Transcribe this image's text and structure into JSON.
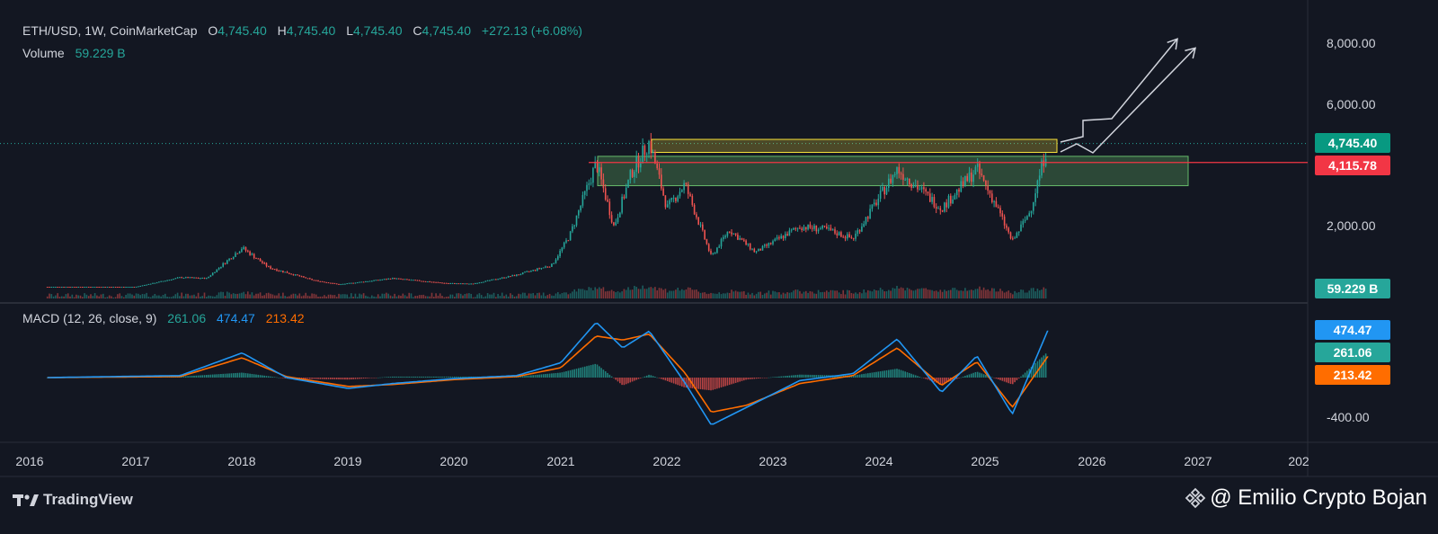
{
  "legend": {
    "symbol": "ETH/USD, 1W, CoinMarketCap",
    "o_label": "O",
    "o_value": "4,745.40",
    "h_label": "H",
    "h_value": "4,745.40",
    "l_label": "L",
    "l_value": "4,745.40",
    "c_label": "C",
    "c_value": "4,745.40",
    "change": "+272.13 (+6.08%)",
    "volume_label": "Volume",
    "volume_value": "59.229 B",
    "macd_label": "MACD (12, 26, close, 9)",
    "macd_hist": "261.06",
    "macd_line": "474.47",
    "macd_signal": "213.42"
  },
  "badges": {
    "last_price": "4,745.40",
    "resistance": "4,115.78",
    "volume": "59.229 B",
    "macd_line": "474.47",
    "macd_hist": "261.06",
    "macd_signal": "213.42"
  },
  "colors": {
    "background": "#131722",
    "up": "#26a69a",
    "down": "#ef5350",
    "macd_line": "#2196f3",
    "signal_line": "#ff6d00",
    "resistance_line": "#f23645",
    "zone_yellow": "#f7e13a",
    "zone_green": "#66bb6a"
  },
  "footer": {
    "brand": "TradingView",
    "author": "@ Emilio Crypto Bojan"
  },
  "chart_data": {
    "type": "candlestick",
    "x_ticks": [
      "2016",
      "2017",
      "2018",
      "2019",
      "2020",
      "2021",
      "2022",
      "2023",
      "2024",
      "2025",
      "2026",
      "2027",
      "202"
    ],
    "y_ticks": [
      "8,000.00",
      "6,000.00",
      "2,000.00"
    ],
    "macd_ticks": [
      "-400.00"
    ],
    "series": [
      {
        "name": "ETH/USD",
        "x": [
          "2016-03",
          "2017-01",
          "2017-06",
          "2017-09",
          "2018-01",
          "2018-04",
          "2018-09",
          "2018-12",
          "2019-06",
          "2019-12",
          "2020-03",
          "2020-08",
          "2020-12",
          "2021-02",
          "2021-05",
          "2021-07",
          "2021-09",
          "2021-11",
          "2022-01",
          "2022-03",
          "2022-06",
          "2022-08",
          "2022-11",
          "2023-04",
          "2023-07",
          "2023-10",
          "2024-03",
          "2024-08",
          "2024-12",
          "2025-02",
          "2025-04",
          "2025-06",
          "2025-08"
        ],
        "values": [
          10,
          10,
          320,
          290,
          1300,
          650,
          230,
          90,
          290,
          130,
          110,
          400,
          730,
          1700,
          4100,
          2000,
          3800,
          4800,
          2600,
          3400,
          1000,
          1900,
          1150,
          2000,
          1900,
          1600,
          3900,
          2600,
          3900,
          2800,
          1500,
          2500,
          4745.4
        ]
      }
    ],
    "volume_last": "59.229 B",
    "macd": {
      "x": [
        "2016-03",
        "2017-06",
        "2018-01",
        "2018-06",
        "2019-01",
        "2019-06",
        "2020-01",
        "2020-08",
        "2021-01",
        "2021-05",
        "2021-08",
        "2021-11",
        "2022-03",
        "2022-06",
        "2022-10",
        "2023-04",
        "2023-10",
        "2024-03",
        "2024-08",
        "2024-12",
        "2025-04",
        "2025-08"
      ],
      "macd_line": [
        0,
        20,
        250,
        0,
        -110,
        -60,
        -10,
        20,
        150,
        560,
        300,
        470,
        -50,
        -480,
        -300,
        -30,
        40,
        390,
        -150,
        220,
        -370,
        474.47
      ],
      "signal_line": [
        0,
        10,
        200,
        10,
        -90,
        -70,
        -20,
        10,
        100,
        420,
        380,
        440,
        50,
        -350,
        -280,
        -60,
        20,
        300,
        -80,
        160,
        -300,
        213.42
      ]
    },
    "annotations": {
      "resistance_price": 4115.78,
      "current_price": 4745.4,
      "yellow_zone": [
        4450,
        4880
      ],
      "green_zone": [
        3350,
        4320
      ],
      "projection_targets": [
        8200,
        7900
      ]
    }
  }
}
